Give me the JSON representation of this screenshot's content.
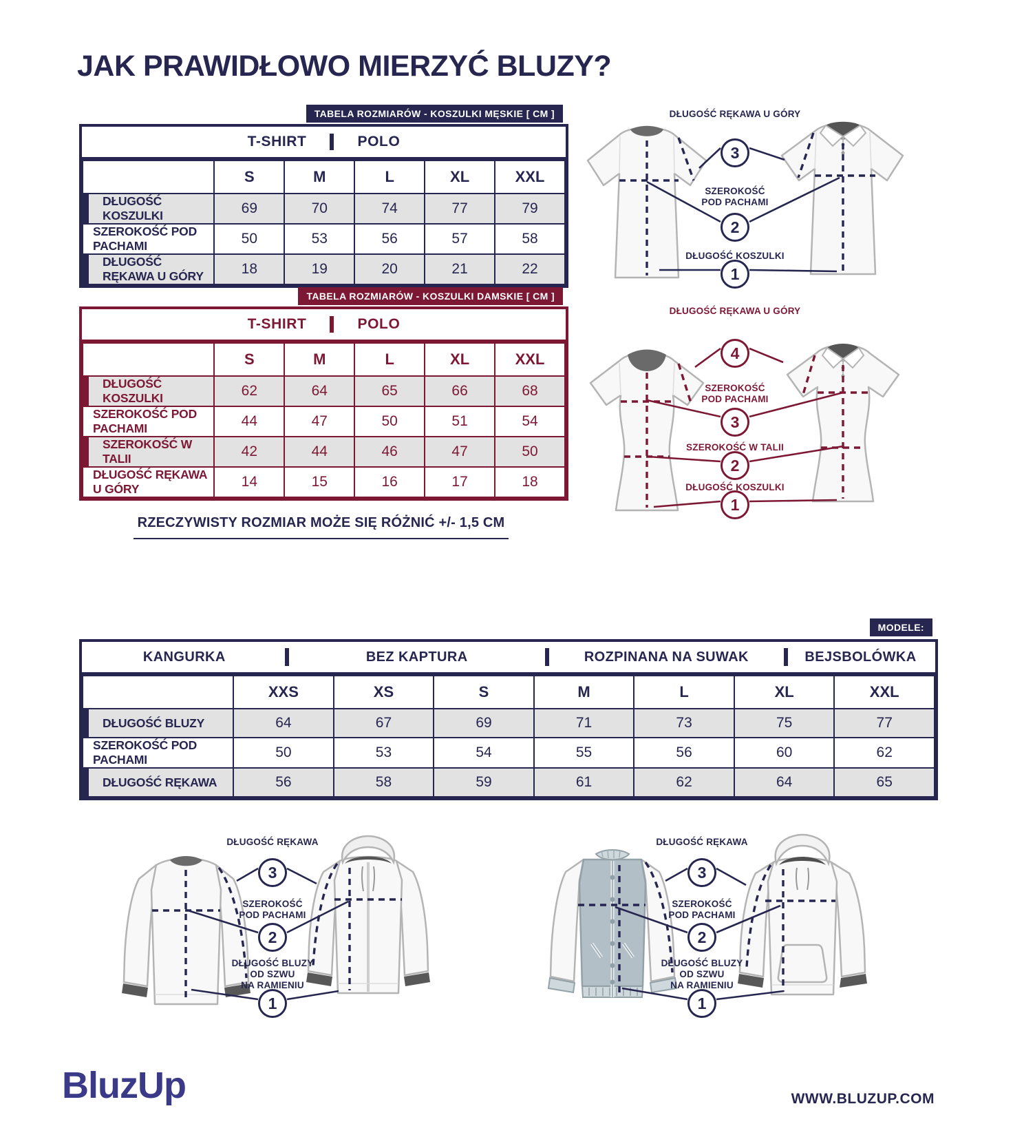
{
  "page": {
    "title": "JAK PRAWIDŁOWO MIERZYĆ BLUZY?",
    "note": "RZECZYWISTY ROZMIAR MOŻE SIĘ RÓŻNIĆ +/- 1,5 CM",
    "footer": {
      "logo": "BluzUp",
      "website": "WWW.BLUZUP.COM"
    }
  },
  "colors": {
    "navy": "#262650",
    "maroon": "#7d1834",
    "shaded_row": "#e2e2e2",
    "logo_blue": "#3a3a88"
  },
  "mens_table": {
    "badge": "TABELA ROZMIARÓW - KOSZULKI MĘSKIE [ CM ]",
    "type_header": {
      "left": "T-SHIRT",
      "right": "POLO"
    },
    "sizes": [
      "S",
      "M",
      "L",
      "XL",
      "XXL"
    ],
    "rows": [
      {
        "label": "DŁUGOŚĆ KOSZULKI",
        "values": [
          69,
          70,
          74,
          77,
          79
        ],
        "shaded": true
      },
      {
        "label": "SZEROKOŚĆ POD PACHAMI",
        "values": [
          50,
          53,
          56,
          57,
          58
        ],
        "shaded": false
      },
      {
        "label": "DŁUGOŚĆ RĘKAWA U GÓRY",
        "values": [
          18,
          19,
          20,
          21,
          22
        ],
        "shaded": true
      }
    ]
  },
  "womens_table": {
    "badge": "TABELA ROZMIARÓW - KOSZULKI DAMSKIE [ CM ]",
    "type_header": {
      "left": "T-SHIRT",
      "right": "POLO"
    },
    "sizes": [
      "S",
      "M",
      "L",
      "XL",
      "XXL"
    ],
    "rows": [
      {
        "label": "DŁUGOŚĆ KOSZULKI",
        "values": [
          62,
          64,
          65,
          66,
          68
        ],
        "shaded": true
      },
      {
        "label": "SZEROKOŚĆ POD PACHAMI",
        "values": [
          44,
          47,
          50,
          51,
          54
        ],
        "shaded": false
      },
      {
        "label": "SZEROKOŚĆ W TALII",
        "values": [
          42,
          44,
          46,
          47,
          50
        ],
        "shaded": true
      },
      {
        "label": "DŁUGOŚĆ RĘKAWA U GÓRY",
        "values": [
          14,
          15,
          16,
          17,
          18
        ],
        "shaded": false
      }
    ]
  },
  "models_table": {
    "badge": "MODELE:",
    "categories": [
      "KANGURKA",
      "BEZ KAPTURA",
      "ROZPINANA NA SUWAK",
      "BEJSBOLÓWKA"
    ],
    "sizes": [
      "XXS",
      "XS",
      "S",
      "M",
      "L",
      "XL",
      "XXL"
    ],
    "rows": [
      {
        "label": "DŁUGOŚĆ BLUZY",
        "values": [
          64,
          67,
          69,
          71,
          73,
          75,
          77
        ],
        "shaded": true
      },
      {
        "label": "SZEROKOŚĆ POD PACHAMI",
        "values": [
          50,
          53,
          54,
          55,
          56,
          60,
          62
        ],
        "shaded": false
      },
      {
        "label": "DŁUGOŚĆ RĘKAWA",
        "values": [
          56,
          58,
          59,
          61,
          62,
          64,
          65
        ],
        "shaded": true
      }
    ]
  },
  "mens_diagram": {
    "labels": [
      {
        "num": "3",
        "text": "DŁUGOŚĆ RĘKAWA U GÓRY"
      },
      {
        "num": "2",
        "text": "SZEROKOŚĆ\nPOD PACHAMI"
      },
      {
        "num": "1",
        "text": "DŁUGOŚĆ KOSZULKI"
      }
    ]
  },
  "womens_diagram": {
    "labels": [
      {
        "num": "4",
        "text": "DŁUGOŚĆ RĘKAWA U GÓRY"
      },
      {
        "num": "3",
        "text": "SZEROKOŚĆ\nPOD PACHAMI"
      },
      {
        "num": "2",
        "text": "SZEROKOŚĆ W TALII"
      },
      {
        "num": "1",
        "text": "DŁUGOŚĆ KOSZULKI"
      }
    ]
  },
  "models_diagram": {
    "labels": [
      {
        "num": "3",
        "text": "DŁUGOŚĆ RĘKAWA"
      },
      {
        "num": "2",
        "text": "SZEROKOŚĆ\nPOD PACHAMI"
      },
      {
        "num": "1",
        "text": "DŁUGOŚĆ BLUZY\nOD SZWU\nNA RAMIENIU"
      }
    ]
  }
}
